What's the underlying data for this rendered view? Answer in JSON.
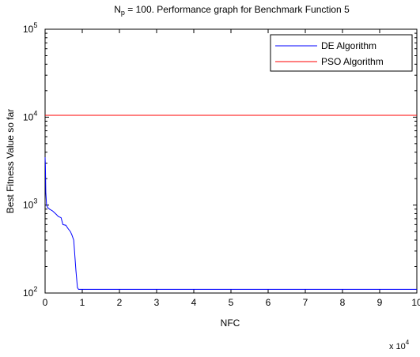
{
  "chart_data": {
    "type": "line",
    "title": {
      "prefix": "N",
      "subscript": "p",
      "rest": " = 100. Performance graph for Benchmark Function 5"
    },
    "xlabel": "NFC",
    "ylabel": "Best Fitness Value so far",
    "x_multiplier": {
      "base": "x 10",
      "exponent": "4"
    },
    "xlim": [
      0,
      100000
    ],
    "ylim": [
      100,
      100000
    ],
    "y_scale": "log",
    "x_ticks": [
      {
        "value": 0,
        "label": "0"
      },
      {
        "value": 10000,
        "label": "1"
      },
      {
        "value": 20000,
        "label": "2"
      },
      {
        "value": 30000,
        "label": "3"
      },
      {
        "value": 40000,
        "label": "4"
      },
      {
        "value": 50000,
        "label": "5"
      },
      {
        "value": 60000,
        "label": "6"
      },
      {
        "value": 70000,
        "label": "7"
      },
      {
        "value": 80000,
        "label": "8"
      },
      {
        "value": 90000,
        "label": "9"
      },
      {
        "value": 100000,
        "label": "10"
      }
    ],
    "y_ticks": [
      {
        "value": 100,
        "base": "10",
        "exp": "2"
      },
      {
        "value": 1000,
        "base": "10",
        "exp": "3"
      },
      {
        "value": 10000,
        "base": "10",
        "exp": "4"
      },
      {
        "value": 100000,
        "base": "10",
        "exp": "5"
      }
    ],
    "grid": false,
    "legend_position": "top-right",
    "series": [
      {
        "name": "DE Algorithm",
        "color": "#0000ff",
        "points": [
          [
            0,
            3500
          ],
          [
            80,
            2800
          ],
          [
            200,
            1400
          ],
          [
            400,
            1000
          ],
          [
            700,
            940
          ],
          [
            1200,
            900
          ],
          [
            2000,
            860
          ],
          [
            2800,
            800
          ],
          [
            3600,
            740
          ],
          [
            4300,
            720
          ],
          [
            4800,
            600
          ],
          [
            5600,
            590
          ],
          [
            6200,
            540
          ],
          [
            6800,
            500
          ],
          [
            7200,
            460
          ],
          [
            7700,
            400
          ],
          [
            8300,
            180
          ],
          [
            8700,
            115
          ],
          [
            9000,
            110
          ],
          [
            10000,
            110
          ],
          [
            100000,
            110
          ]
        ]
      },
      {
        "name": "PSO Algorithm",
        "color": "#ff0000",
        "points": [
          [
            0,
            10500
          ],
          [
            100000,
            10500
          ]
        ]
      }
    ]
  }
}
